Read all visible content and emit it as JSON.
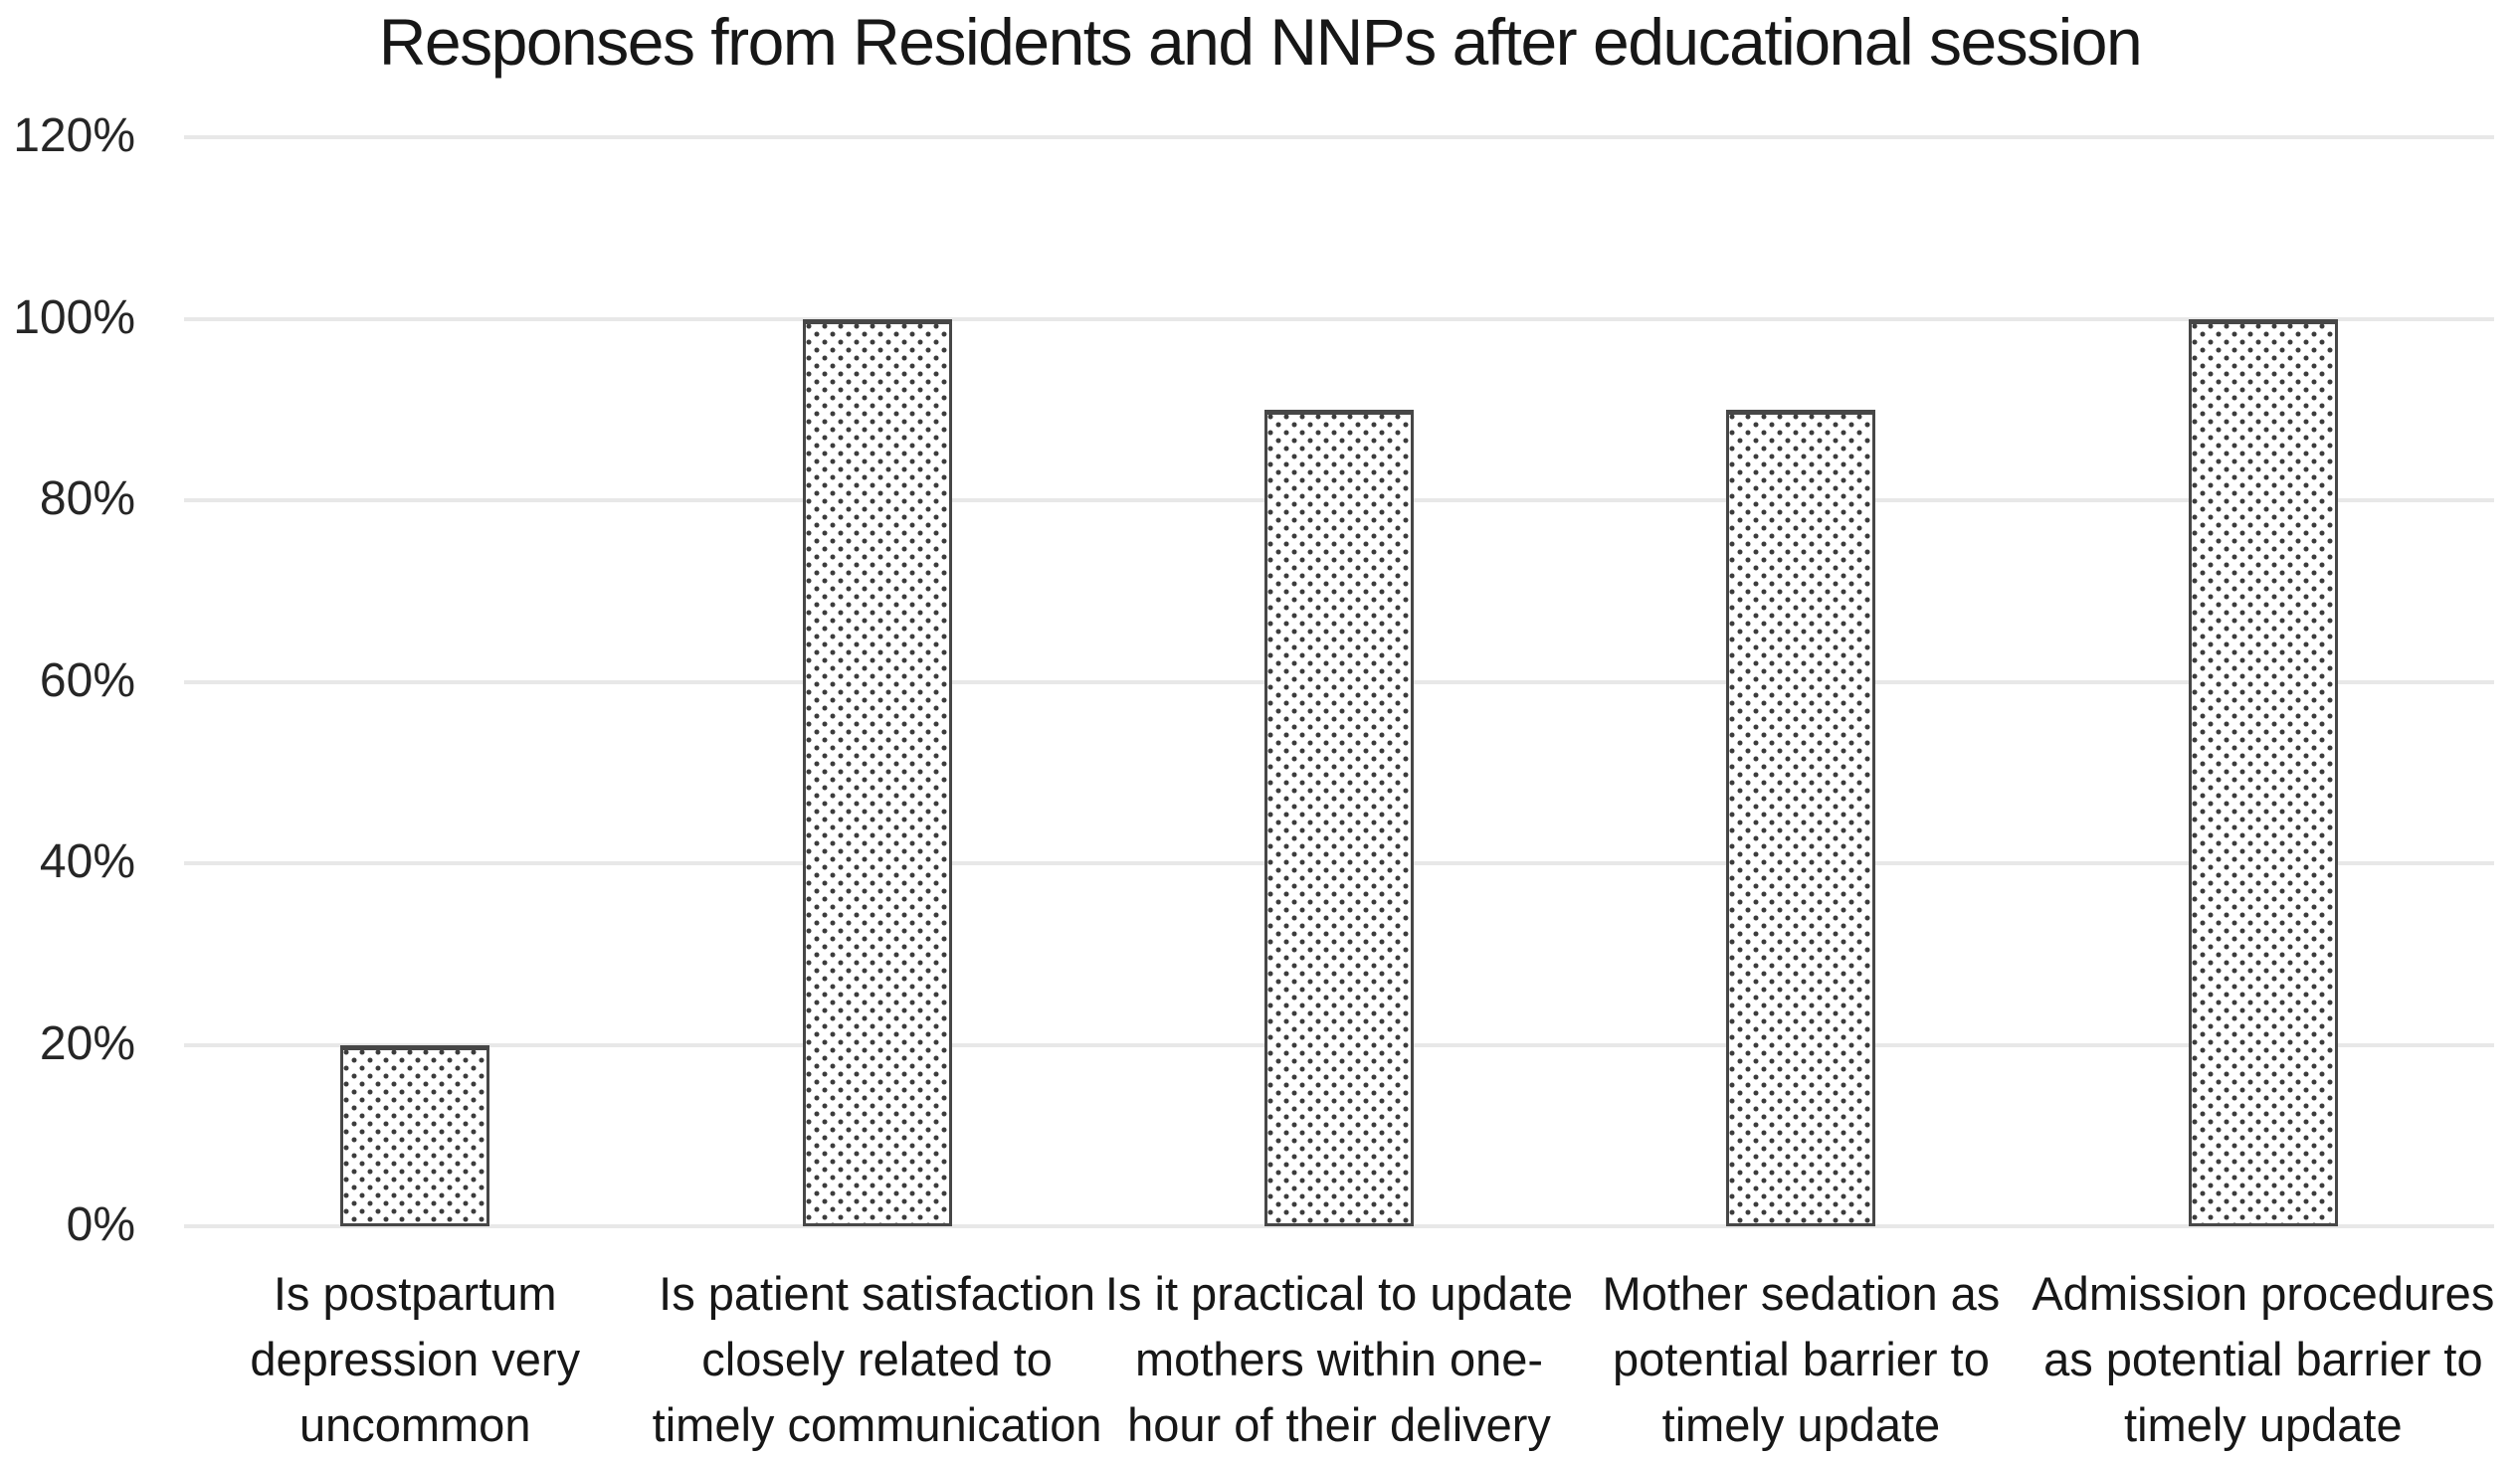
{
  "chart_data": {
    "type": "bar",
    "title": "Responses from Residents and NNPs after educational session",
    "categories": [
      "Is postpartum depression very uncommon",
      "Is patient satisfaction closely related to timely communication",
      "Is it practical to update mothers within one-hour of their delivery",
      "Mother sedation as potential barrier to timely update",
      "Admission procedures as potential barrier to timely update"
    ],
    "categories_wrapped": [
      "Is postpartum\ndepression very\nuncommon",
      "Is patient satisfaction\nclosely related to\ntimely communication",
      "Is it practical to update\nmothers within one-\nhour of their delivery",
      "Mother sedation as\npotential barrier to\ntimely update",
      "Admission procedures\nas potential barrier to\ntimely update"
    ],
    "values": [
      20,
      100,
      90,
      90,
      100
    ],
    "value_unit": "%",
    "xlabel": "",
    "ylabel": "",
    "ylim": [
      0,
      120
    ],
    "yticks": [
      0,
      20,
      40,
      60,
      80,
      100,
      120
    ],
    "ytick_labels": [
      "0%",
      "20%",
      "40%",
      "60%",
      "80%",
      "100%",
      "120%"
    ],
    "grid": "horizontal",
    "legend": "none",
    "bar_style": "white fill with dark dotted pattern and dark gray outline",
    "colors": {
      "background": "#ffffff",
      "text": "#1f1f1f",
      "gridline": "#e8e8e8",
      "bar_border": "#474747",
      "bar_dot": "#3c3c3c",
      "bar_fill": "#ffffff"
    }
  }
}
